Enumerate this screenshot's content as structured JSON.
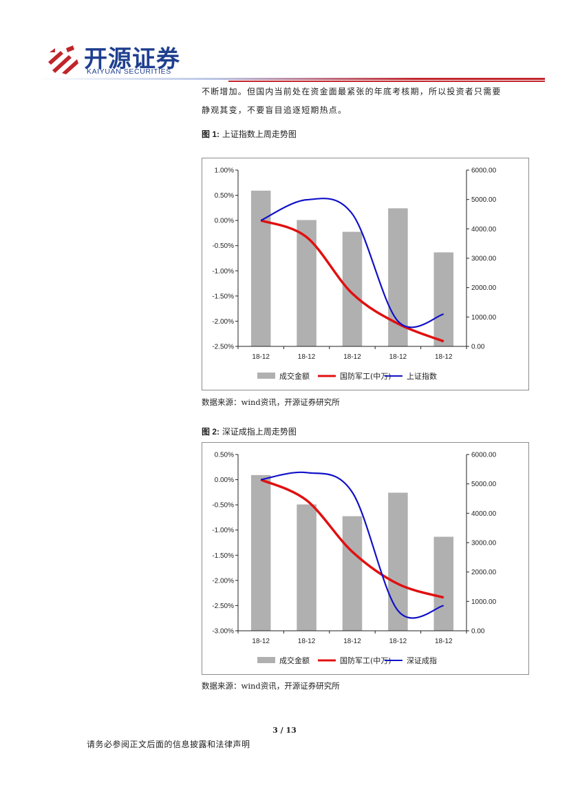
{
  "header": {
    "brand_cn": "开源证券",
    "brand_en": "KAIYUAN SECURITIES",
    "brand_color": "#1f3f8f",
    "accent_color": "#c0252b"
  },
  "body_text": [
    "不断增加。但国内当前处在资金面最紧张的年底考核期，所以投资者只需要",
    "静观其变，不要盲目追逐短期热点。"
  ],
  "figures": [
    {
      "label": "图 1:",
      "title": "上证指数上周走势图",
      "source": "数据来源：wind资讯，开源证券研究所"
    },
    {
      "label": "图 2:",
      "title": "深证成指上周走势图",
      "source": "数据来源：wind资讯，开源证券研究所"
    }
  ],
  "chart_data": [
    {
      "type": "bar",
      "categories": [
        "18-12",
        "18-12",
        "18-12",
        "18-12",
        "18-12"
      ],
      "y_left": {
        "lim": [
          -2.5,
          1.0
        ],
        "ticks": [
          "1.00%",
          "0.50%",
          "0.00%",
          "-0.50%",
          "-1.00%",
          "-1.50%",
          "-2.00%",
          "-2.50%"
        ]
      },
      "y_right": {
        "lim": [
          0,
          6000
        ],
        "ticks": [
          "6000.00",
          "5000.00",
          "4000.00",
          "3000.00",
          "2000.00",
          "1000.00",
          "0.00"
        ]
      },
      "series": [
        {
          "name": "成交金额",
          "kind": "bar",
          "axis": "right",
          "color": "#b0b0b0",
          "values": [
            5300,
            4300,
            3900,
            4700,
            3200
          ]
        },
        {
          "name": "国防军工(中万)",
          "kind": "line",
          "axis": "left",
          "color": "#e01010",
          "values": [
            0.0,
            -0.33,
            -1.45,
            -2.05,
            -2.4
          ]
        },
        {
          "name": "上证指数",
          "kind": "line",
          "axis": "left",
          "color": "#1010c8",
          "values": [
            0.0,
            0.41,
            0.13,
            -2.0,
            -1.86
          ]
        }
      ],
      "legend_position": "bottom"
    },
    {
      "type": "bar",
      "categories": [
        "18-12",
        "18-12",
        "18-12",
        "18-12",
        "18-12"
      ],
      "y_left": {
        "lim": [
          -3.0,
          0.5
        ],
        "ticks": [
          "0.50%",
          "0.00%",
          "-0.50%",
          "-1.00%",
          "-1.50%",
          "-2.00%",
          "-2.50%",
          "-3.00%"
        ]
      },
      "y_right": {
        "lim": [
          0,
          6000
        ],
        "ticks": [
          "6000.00",
          "5000.00",
          "4000.00",
          "3000.00",
          "2000.00",
          "1000.00",
          "0.00"
        ]
      },
      "series": [
        {
          "name": "成交金额",
          "kind": "bar",
          "axis": "right",
          "color": "#b0b0b0",
          "values": [
            5300,
            4300,
            3900,
            4700,
            3200
          ]
        },
        {
          "name": "国防军工(中万)",
          "kind": "line",
          "axis": "left",
          "color": "#e01010",
          "values": [
            0.0,
            -0.41,
            -1.43,
            -2.07,
            -2.34
          ]
        },
        {
          "name": "深证成指",
          "kind": "line",
          "axis": "left",
          "color": "#1010c8",
          "values": [
            0.0,
            0.14,
            -0.25,
            -2.6,
            -2.5
          ]
        }
      ],
      "legend_position": "bottom"
    }
  ],
  "footer": {
    "page": "3 / 13",
    "disclaimer": "请务必参阅正文后面的信息披露和法律声明"
  }
}
